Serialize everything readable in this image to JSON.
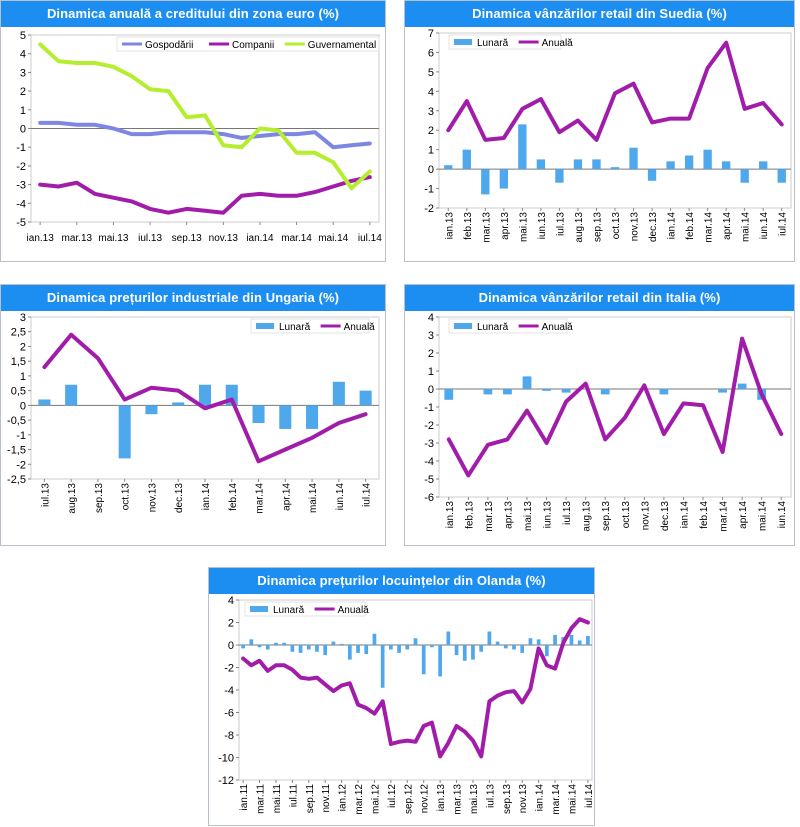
{
  "colors": {
    "header": "#1c8ef2",
    "monthly_bar": "#4fa7ec",
    "annual_line": "#a21caa",
    "households": "#7e86e4",
    "companies": "#a21caa",
    "government": "#b5ee2f"
  },
  "chart_data": [
    {
      "type": "line",
      "title": "Dinamica anuală a creditului din zona euro (%)",
      "ylim": [
        -5,
        5
      ],
      "yticks": [
        "5",
        "4",
        "3",
        "2",
        "1",
        "0",
        "-1",
        "-2",
        "-3",
        "-4",
        "-5"
      ],
      "xtick_labels": [
        "ian.13",
        "mar.13",
        "mai.13",
        "iul.13",
        "sep.13",
        "nov.13",
        "ian.14",
        "mar.14",
        "mai.14",
        "iul.14"
      ],
      "legend": [
        "Gospodării",
        "Companii",
        "Guvernamental"
      ],
      "series": [
        {
          "name": "Gospodării",
          "values": [
            0.3,
            0.3,
            0.2,
            0.2,
            0.0,
            -0.3,
            -0.3,
            -0.2,
            -0.2,
            -0.2,
            -0.3,
            -0.5,
            -0.4,
            -0.3,
            -0.3,
            -0.2,
            -1.0,
            -0.9,
            -0.8
          ]
        },
        {
          "name": "Companii",
          "values": [
            -3.0,
            -3.1,
            -2.9,
            -3.5,
            -3.7,
            -3.9,
            -4.3,
            -4.5,
            -4.3,
            -4.4,
            -4.5,
            -3.6,
            -3.5,
            -3.6,
            -3.6,
            -3.4,
            -3.1,
            -2.8,
            -2.6
          ]
        },
        {
          "name": "Guvernamental",
          "values": [
            4.5,
            3.6,
            3.5,
            3.5,
            3.3,
            2.8,
            2.1,
            2.0,
            0.6,
            0.7,
            -0.9,
            -1.0,
            0.0,
            -0.1,
            -1.3,
            -1.3,
            -1.8,
            -3.2,
            -2.3
          ]
        }
      ]
    },
    {
      "type": "bar+line",
      "title": "Dinamica vânzărilor retail din Suedia (%)",
      "ylim": [
        -2,
        7
      ],
      "yticks": [
        "7",
        "6",
        "5",
        "4",
        "3",
        "2",
        "1",
        "0",
        "-1",
        "-2"
      ],
      "categories": [
        "ian.13",
        "feb.13",
        "mar.13",
        "apr.13",
        "mai.13",
        "iun.13",
        "iul.13",
        "aug.13",
        "sep.13",
        "oct.13",
        "nov.13",
        "dec.13",
        "ian.14",
        "feb.14",
        "mar.14",
        "apr.14",
        "mai.14",
        "iun.14",
        "iul.14"
      ],
      "legend": [
        "Lunară",
        "Anuală"
      ],
      "series": [
        {
          "name": "Lunară",
          "type": "bar",
          "values": [
            0.2,
            1.0,
            -1.3,
            -1.0,
            2.3,
            0.5,
            -0.7,
            0.5,
            0.5,
            0.1,
            1.1,
            -0.6,
            0.4,
            0.7,
            1.0,
            0.4,
            -0.7,
            0.4,
            -0.7
          ]
        },
        {
          "name": "Anuală",
          "type": "line",
          "values": [
            2.0,
            3.5,
            1.5,
            1.6,
            3.1,
            3.6,
            1.9,
            2.5,
            1.5,
            3.9,
            4.4,
            2.4,
            2.6,
            2.6,
            5.2,
            6.5,
            3.1,
            3.4,
            2.3
          ]
        }
      ]
    },
    {
      "type": "bar+line",
      "title": "Dinamica prețurilor industriale din Ungaria (%)",
      "ylim": [
        -2.5,
        3
      ],
      "yticks": [
        "3",
        "2,5",
        "2",
        "1,5",
        "1",
        "0,5",
        "0",
        "-0,5",
        "-1",
        "-1,5",
        "-2",
        "-2,5"
      ],
      "categories": [
        "iul.13",
        "aug.13",
        "sep.13",
        "oct.13",
        "nov.13",
        "dec.13",
        "ian.14",
        "feb.14",
        "mar.14",
        "apr.14",
        "mai.14",
        "iun.14",
        "iul.14"
      ],
      "legend": [
        "Lunară",
        "Anuală"
      ],
      "series": [
        {
          "name": "Lunară",
          "type": "bar",
          "values": [
            0.2,
            0.7,
            0.0,
            -1.8,
            -0.3,
            0.1,
            0.7,
            0.7,
            -0.6,
            -0.8,
            -0.8,
            0.8,
            0.5
          ]
        },
        {
          "name": "Anuală",
          "type": "line",
          "values": [
            1.3,
            2.4,
            1.6,
            0.2,
            0.6,
            0.5,
            -0.1,
            0.2,
            -1.9,
            -1.5,
            -1.1,
            -0.6,
            -0.3
          ]
        }
      ]
    },
    {
      "type": "bar+line",
      "title": "Dinamica vânzărilor retail din Italia (%)",
      "ylim": [
        -6,
        4
      ],
      "yticks": [
        "4",
        "3",
        "2",
        "1",
        "0",
        "-1",
        "-2",
        "-3",
        "-4",
        "-5",
        "-6"
      ],
      "categories": [
        "ian.13",
        "feb.13",
        "mar.13",
        "apr.13",
        "mai.13",
        "iun.13",
        "iul.13",
        "aug.13",
        "sep.13",
        "oct.13",
        "nov.13",
        "dec.13",
        "ian.14",
        "feb.14",
        "mar.14",
        "apr.14",
        "mai.14",
        "iun.14"
      ],
      "legend": [
        "Lunară",
        "Anuală"
      ],
      "series": [
        {
          "name": "Lunară",
          "type": "bar",
          "values": [
            -0.6,
            0.0,
            -0.3,
            -0.3,
            0.7,
            -0.1,
            -0.2,
            0.0,
            -0.3,
            0.0,
            0.0,
            -0.3,
            0.0,
            0.0,
            -0.2,
            0.3,
            -0.6,
            0.0
          ]
        },
        {
          "name": "Anuală",
          "type": "line",
          "values": [
            -2.8,
            -4.8,
            -3.1,
            -2.8,
            -1.2,
            -3.0,
            -0.7,
            0.3,
            -2.8,
            -1.6,
            0.2,
            -2.5,
            -0.8,
            -0.9,
            -3.5,
            2.8,
            -0.3,
            -2.5
          ]
        }
      ]
    },
    {
      "type": "bar+line",
      "title": "Dinamica prețurilor locuințelor din Olanda (%)",
      "ylim": [
        -12,
        4
      ],
      "yticks": [
        "4",
        "2",
        "0",
        "-2",
        "-4",
        "-6",
        "-8",
        "-10",
        "-12"
      ],
      "categories": [
        "ian.11",
        "feb.11",
        "mar.11",
        "apr.11",
        "mai.11",
        "iun.11",
        "iul.11",
        "aug.11",
        "sep.11",
        "oct.11",
        "nov.11",
        "dec.11",
        "ian.12",
        "feb.12",
        "mar.12",
        "apr.12",
        "mai.12",
        "iun.12",
        "iul.12",
        "aug.12",
        "sep.12",
        "oct.12",
        "nov.12",
        "dec.12",
        "ian.13",
        "feb.13",
        "mar.13",
        "apr.13",
        "mai.13",
        "iun.13",
        "iul.13",
        "aug.13",
        "sep.13",
        "oct.13",
        "nov.13",
        "dec.13",
        "ian.14",
        "feb.14",
        "mar.14",
        "apr.14",
        "mai.14",
        "iun.14",
        "iul.14"
      ],
      "xtick_labels": [
        "ian.11",
        "mar.11",
        "mai.11",
        "iul.11",
        "sep.11",
        "nov.11",
        "ian.12",
        "mar.12",
        "mai.12",
        "iul.12",
        "sep.12",
        "nov.12",
        "ian.13",
        "mar.13",
        "mai.13",
        "iul.13",
        "sep.13",
        "nov.13",
        "ian.14",
        "mar.14",
        "mai.14",
        "iul.14"
      ],
      "legend": [
        "Lunară",
        "Anuală"
      ],
      "series": [
        {
          "name": "Lunară",
          "type": "bar",
          "values": [
            -0.3,
            0.5,
            -0.2,
            -0.4,
            0.2,
            0.2,
            -0.6,
            -0.7,
            -0.4,
            -0.6,
            -0.9,
            0.3,
            0.1,
            -1.3,
            -0.7,
            -0.8,
            1.0,
            -3.8,
            -0.4,
            -0.7,
            -0.4,
            0.6,
            -2.6,
            -0.2,
            -2.8,
            1.2,
            -0.9,
            -1.4,
            -1.3,
            -0.6,
            1.2,
            0.3,
            -0.3,
            -0.4,
            -0.7,
            0.6,
            0.5,
            -1.0,
            0.9,
            0.7,
            0.9,
            0.4,
            0.8
          ]
        },
        {
          "name": "Anuală",
          "type": "line",
          "values": [
            -1.2,
            -1.8,
            -1.4,
            -2.3,
            -1.8,
            -1.8,
            -2.2,
            -2.9,
            -3.0,
            -2.9,
            -3.5,
            -4.1,
            -3.6,
            -3.4,
            -5.3,
            -5.6,
            -6.1,
            -5.0,
            -8.8,
            -8.6,
            -8.5,
            -8.6,
            -7.2,
            -6.9,
            -9.9,
            -8.7,
            -7.2,
            -7.7,
            -8.5,
            -9.9,
            -5.0,
            -4.5,
            -4.2,
            -4.1,
            -5.1,
            -3.9,
            -0.3,
            -1.8,
            -2.1,
            0.2,
            1.5,
            2.3,
            2.0
          ]
        }
      ]
    }
  ]
}
